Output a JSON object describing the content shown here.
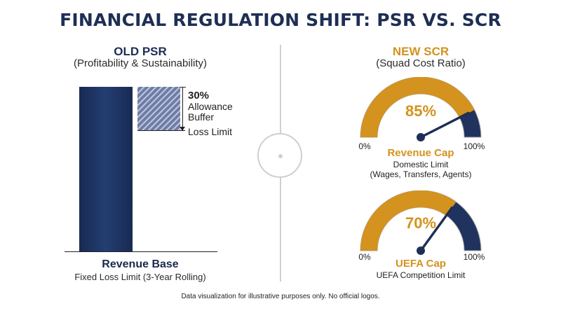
{
  "title": "FINANCIAL REGULATION SHIFT: PSR VS. SCR",
  "left": {
    "header": "OLD PSR",
    "subheader": "(Profitability & Sustainability)",
    "buffer_percent": "30%",
    "buffer_label_1": "Allowance",
    "buffer_label_2": "Buffer",
    "loss_limit_label": "Loss Limit",
    "base_label": "Revenue Base",
    "base_sublabel": "Fixed Loss Limit (3-Year Rolling)"
  },
  "right": {
    "header": "NEW SCR",
    "subheader": "(Squad Cost Ratio)",
    "gauges": [
      {
        "percent_text": "85%",
        "value": 85,
        "min_label": "0%",
        "max_label": "100%",
        "caption": "Revenue Cap",
        "desc_1": "Domestic Limit",
        "desc_2": "(Wages, Transfers, Agents)"
      },
      {
        "percent_text": "70%",
        "value": 70,
        "min_label": "0%",
        "max_label": "100%",
        "caption": "UEFA Cap",
        "desc_1": "UEFA Competition Limit"
      }
    ]
  },
  "footer": "Data visualization for illustrative purposes only. No official logos.",
  "colors": {
    "navy": "#1e2f55",
    "gold": "#d4921e",
    "gauge_navy": "#20325e",
    "buffer": "#6e7ca8"
  }
}
